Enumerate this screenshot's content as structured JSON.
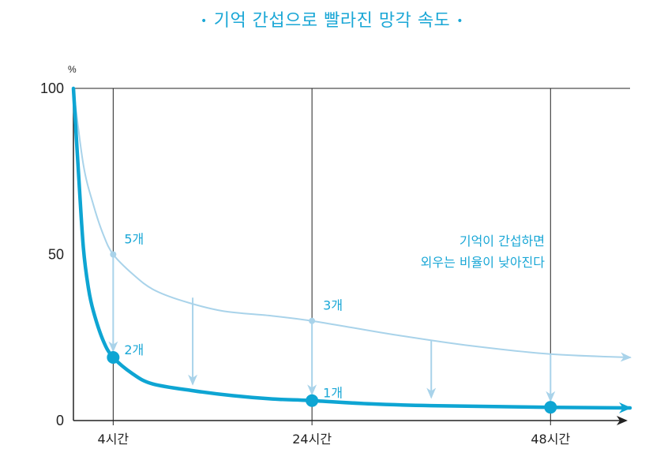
{
  "chart_data": {
    "type": "line",
    "title": "기억 간섭으로 빨라진 망각 속도",
    "title_bullet": "•",
    "ylabel": "%",
    "ylim": [
      0,
      100
    ],
    "y_ticks": [
      0,
      50,
      100
    ],
    "x_ticks": [
      {
        "x": 4,
        "label": "4시간"
      },
      {
        "x": 24,
        "label": "24시간"
      },
      {
        "x": 48,
        "label": "48시간"
      }
    ],
    "xlim": [
      0,
      56
    ],
    "colors": {
      "light": "#a9d3ea",
      "strong": "#0ea5d3",
      "text": "#1aa7d6",
      "axis": "#222222"
    },
    "series": [
      {
        "style": "light",
        "x": [
          0,
          1,
          2,
          3,
          4,
          6,
          8,
          11,
          15,
          20,
          24,
          28,
          33,
          40,
          48,
          56
        ],
        "values": [
          100,
          77,
          65,
          56,
          50,
          44,
          39.5,
          36,
          33,
          31.5,
          30,
          28,
          25.5,
          22.5,
          20,
          19
        ]
      },
      {
        "style": "strong",
        "x": [
          0,
          0.5,
          1,
          1.5,
          2,
          3,
          4,
          6,
          8,
          12,
          16,
          20,
          24,
          30,
          36,
          48,
          56
        ],
        "values": [
          100,
          75,
          52,
          40,
          33,
          24,
          19,
          14,
          11,
          9,
          7.5,
          6.5,
          6,
          5,
          4.5,
          4,
          3.8
        ]
      }
    ],
    "point_labels": [
      {
        "x": 4,
        "y": 50,
        "label": "5개",
        "series": "light"
      },
      {
        "x": 24,
        "y": 30,
        "label": "3개",
        "series": "light"
      },
      {
        "x": 4,
        "y": 19,
        "label": "2개",
        "series": "strong"
      },
      {
        "x": 24,
        "y": 6,
        "label": "1개",
        "series": "strong"
      },
      {
        "x": 48,
        "y": 4,
        "label": "",
        "series": "strong"
      }
    ],
    "drop_arrows": [
      {
        "x": 4,
        "from": 50,
        "to": 21
      },
      {
        "x": 12,
        "from": 37,
        "to": 11
      },
      {
        "x": 24,
        "from": 30,
        "to": 8
      },
      {
        "x": 36,
        "from": 24,
        "to": 7
      },
      {
        "x": 48,
        "from": 20,
        "to": 6
      }
    ],
    "annotation": [
      "기억이 간섭하면",
      "외우는 비율이 낮아진다"
    ]
  }
}
